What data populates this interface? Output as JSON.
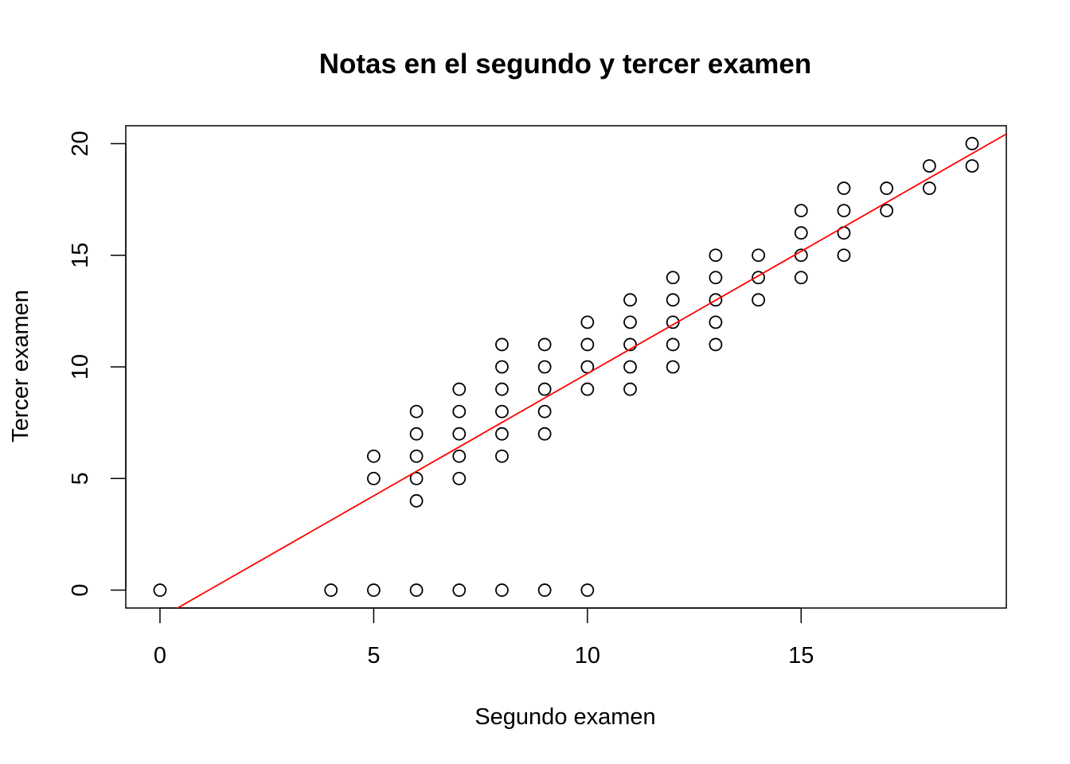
{
  "chart_data": {
    "type": "scatter",
    "title": "Notas en el segundo y tercer examen",
    "xlabel": "Segundo examen",
    "ylabel": "Tercer examen",
    "xlim": [
      -0.8,
      19.8
    ],
    "ylim": [
      -0.8,
      20.8
    ],
    "x_ticks": [
      0,
      5,
      10,
      15
    ],
    "y_ticks": [
      0,
      5,
      10,
      15,
      20
    ],
    "grid": false,
    "point_color": "#000000",
    "line_color": "#ff0000",
    "regression_line": {
      "intercept": -1.25,
      "slope": 1.095
    },
    "points": [
      [
        0,
        0
      ],
      [
        4,
        0
      ],
      [
        5,
        0
      ],
      [
        6,
        0
      ],
      [
        7,
        0
      ],
      [
        8,
        0
      ],
      [
        9,
        0
      ],
      [
        10,
        0
      ],
      [
        5,
        5
      ],
      [
        5,
        6
      ],
      [
        6,
        4
      ],
      [
        6,
        5
      ],
      [
        6,
        6
      ],
      [
        6,
        7
      ],
      [
        6,
        8
      ],
      [
        7,
        5
      ],
      [
        7,
        6
      ],
      [
        7,
        7
      ],
      [
        7,
        8
      ],
      [
        7,
        9
      ],
      [
        8,
        6
      ],
      [
        8,
        7
      ],
      [
        8,
        8
      ],
      [
        8,
        9
      ],
      [
        8,
        10
      ],
      [
        8,
        11
      ],
      [
        9,
        7
      ],
      [
        9,
        8
      ],
      [
        9,
        9
      ],
      [
        9,
        10
      ],
      [
        9,
        11
      ],
      [
        10,
        9
      ],
      [
        10,
        10
      ],
      [
        10,
        11
      ],
      [
        10,
        12
      ],
      [
        11,
        9
      ],
      [
        11,
        10
      ],
      [
        11,
        11
      ],
      [
        11,
        12
      ],
      [
        11,
        13
      ],
      [
        12,
        10
      ],
      [
        12,
        11
      ],
      [
        12,
        12
      ],
      [
        12,
        13
      ],
      [
        12,
        14
      ],
      [
        13,
        11
      ],
      [
        13,
        12
      ],
      [
        13,
        13
      ],
      [
        13,
        14
      ],
      [
        13,
        15
      ],
      [
        14,
        13
      ],
      [
        14,
        14
      ],
      [
        14,
        15
      ],
      [
        15,
        14
      ],
      [
        15,
        15
      ],
      [
        15,
        16
      ],
      [
        15,
        17
      ],
      [
        16,
        15
      ],
      [
        16,
        16
      ],
      [
        16,
        17
      ],
      [
        16,
        18
      ],
      [
        17,
        17
      ],
      [
        17,
        18
      ],
      [
        18,
        18
      ],
      [
        18,
        19
      ],
      [
        19,
        19
      ],
      [
        19,
        20
      ]
    ]
  }
}
